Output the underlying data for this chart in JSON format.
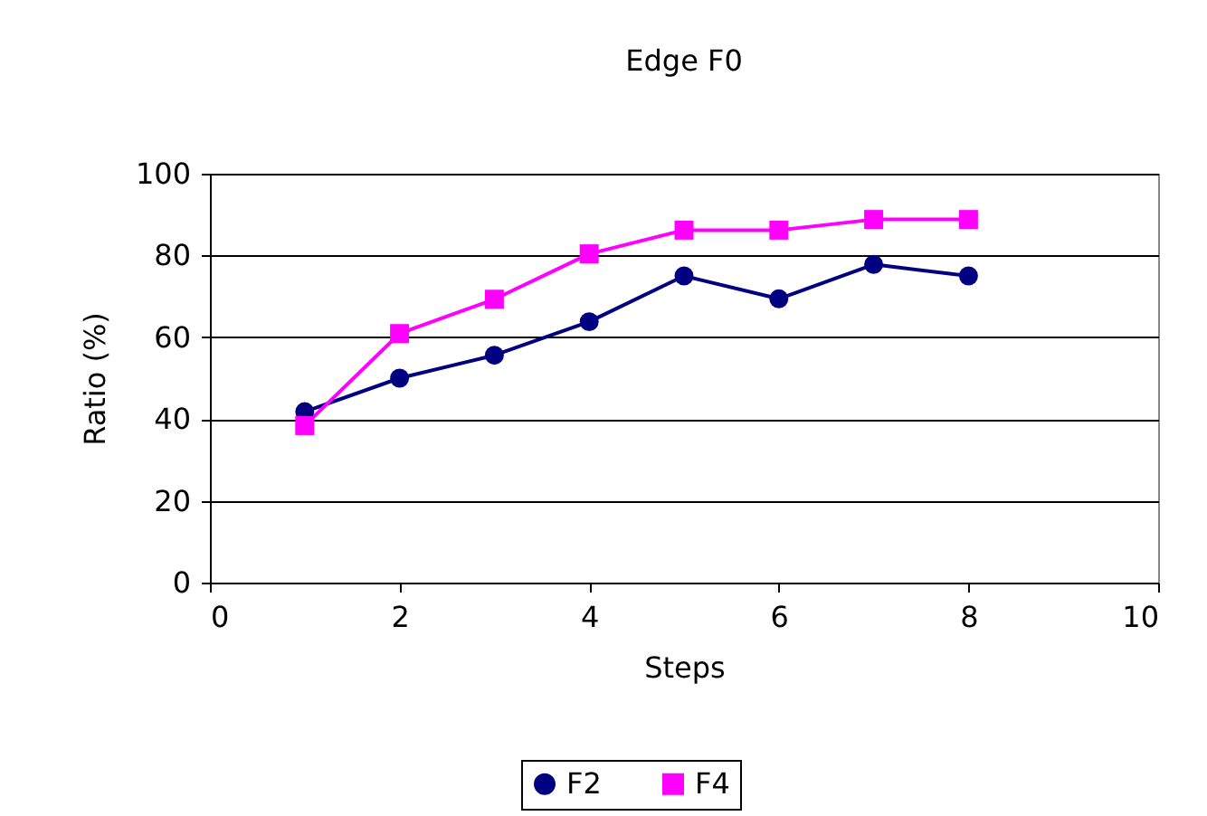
{
  "chart_data": {
    "type": "line",
    "title": "Edge F0",
    "xlabel": "Steps",
    "ylabel": "Ratio (%)",
    "x": [
      1,
      2,
      3,
      4,
      5,
      6,
      7,
      8
    ],
    "series": [
      {
        "name": "F2",
        "color": "#000080",
        "marker": "circle",
        "values": [
          41.8,
          50,
          55.6,
          63.8,
          75,
          69.4,
          77.8,
          75
        ]
      },
      {
        "name": "F4",
        "color": "#ff00ff",
        "marker": "square",
        "values": [
          38.4,
          60.9,
          69.3,
          80.4,
          86.2,
          86.2,
          88.8,
          88.8
        ]
      }
    ],
    "xlim": [
      0,
      10
    ],
    "xticks": [
      0,
      2,
      4,
      6,
      8,
      10
    ],
    "ylim": [
      0,
      100
    ],
    "yticks": [
      0,
      20,
      40,
      60,
      80,
      100
    ],
    "grid": "y",
    "legend": "bottom",
    "line_style": "solid"
  }
}
